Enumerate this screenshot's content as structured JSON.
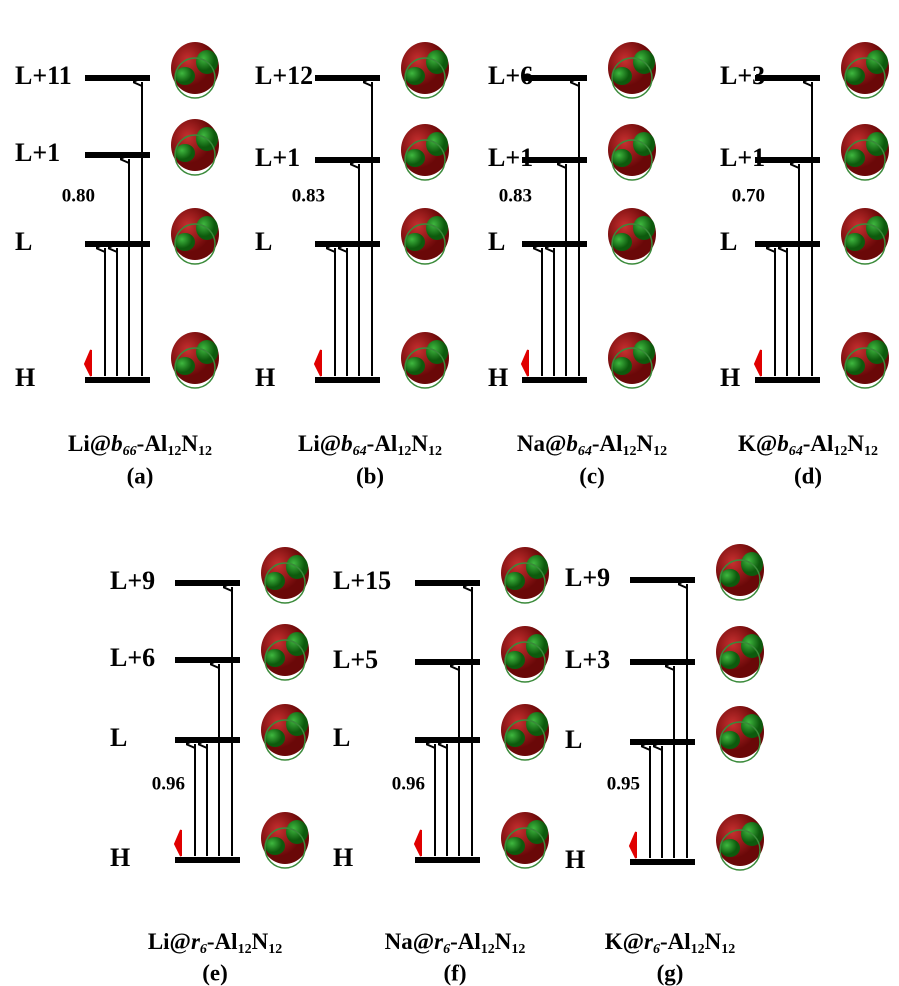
{
  "panels": [
    {
      "label": "(a)",
      "formula": {
        "metal": "Li@",
        "site": "b",
        "site_index": "66",
        "al": "-Al",
        "al_count": "12",
        "n": "N",
        "n_count": "12"
      },
      "levels": [
        "H",
        "L",
        "L+1",
        "L+11"
      ],
      "coefficient": "0.80"
    },
    {
      "label": "(b)",
      "formula": {
        "metal": "Li@",
        "site": "b",
        "site_index": "64",
        "al": "-Al",
        "al_count": "12",
        "n": "N",
        "n_count": "12"
      },
      "levels": [
        "H",
        "L",
        "L+1",
        "L+12"
      ],
      "coefficient": "0.83"
    },
    {
      "label": "(c)",
      "formula": {
        "metal": "Na@",
        "site": "b",
        "site_index": "64",
        "al": "-Al",
        "al_count": "12",
        "n": "N",
        "n_count": "12"
      },
      "levels": [
        "H",
        "L",
        "L+1",
        "L+6"
      ],
      "coefficient": "0.83"
    },
    {
      "label": "(d)",
      "formula": {
        "metal": "K@",
        "site": "b",
        "site_index": "64",
        "al": "-Al",
        "al_count": "12",
        "n": "N",
        "n_count": "12"
      },
      "levels": [
        "H",
        "L",
        "L+1",
        "L+3"
      ],
      "coefficient": "0.70"
    },
    {
      "label": "(e)",
      "formula": {
        "metal": "Li@",
        "site": "r",
        "site_index": "6",
        "al": "-Al",
        "al_count": "12",
        "n": "N",
        "n_count": "12"
      },
      "levels": [
        "H",
        "L",
        "L+6",
        "L+9"
      ],
      "coefficient": "0.96"
    },
    {
      "label": "(f)",
      "formula": {
        "metal": "Na@",
        "site": "r",
        "site_index": "6",
        "al": "-Al",
        "al_count": "12",
        "n": "N",
        "n_count": "12"
      },
      "levels": [
        "H",
        "L",
        "L+5",
        "L+15"
      ],
      "coefficient": "0.96"
    },
    {
      "label": "(g)",
      "formula": {
        "metal": "K@",
        "site": "r",
        "site_index": "6",
        "al": "-Al",
        "al_count": "12",
        "n": "N",
        "n_count": "12"
      },
      "levels": [
        "H",
        "L",
        "L+3",
        "L+9"
      ],
      "coefficient": "0.95"
    }
  ]
}
